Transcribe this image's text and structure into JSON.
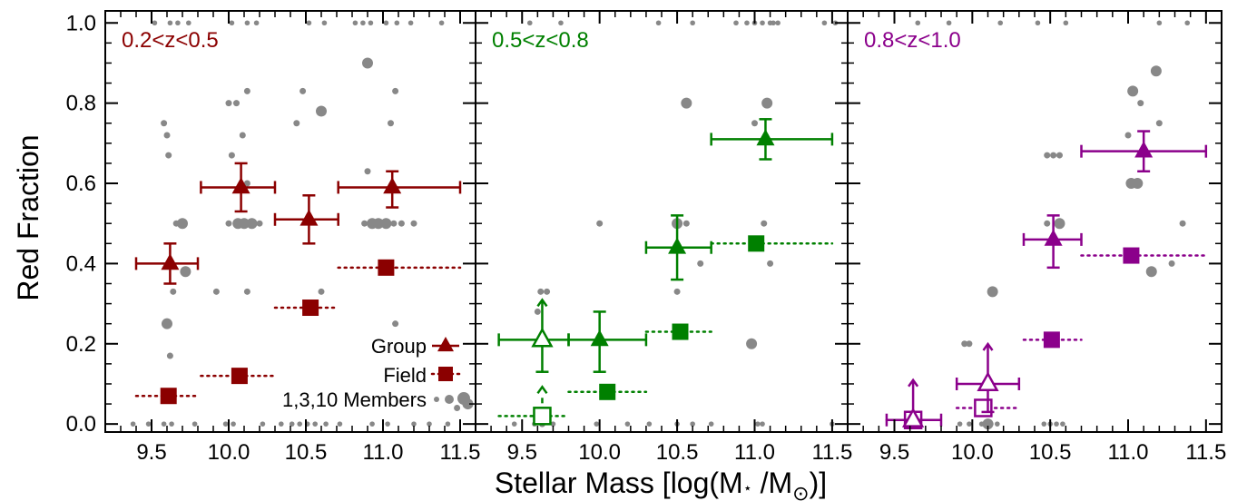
{
  "figure": {
    "xlabel_main": "Stellar Mass [log(M",
    "xlabel_star": "⋆",
    "xlabel_mid": " /M",
    "xlabel_sun": "⊙",
    "xlabel_end": ")]",
    "ylabel": "Red Fraction",
    "legend": {
      "group": "Group",
      "field": "Field",
      "members": "1,3,10 Members"
    }
  },
  "colors": {
    "panel1": "#8b0000",
    "panel2": "#008000",
    "panel3": "#8b008b",
    "members": "#888888"
  },
  "chart_data": [
    {
      "type": "scatter",
      "title": "0.2<z<0.5",
      "xlim": [
        9.2,
        11.6
      ],
      "ylim": [
        -0.02,
        1.03
      ],
      "x_ticks": [
        "9.5",
        "10.0",
        "10.5",
        "11.0",
        "11.5"
      ],
      "y_ticks": [
        "0.0",
        "0.2",
        "0.4",
        "0.6",
        "0.8",
        "1.0"
      ],
      "group": [
        {
          "x": 9.62,
          "y": 0.4,
          "xerr": [
            9.4,
            9.8
          ],
          "yerr": [
            0.35,
            0.45
          ],
          "lower_limit": false
        },
        {
          "x": 10.08,
          "y": 0.59,
          "xerr": [
            9.82,
            10.3
          ],
          "yerr": [
            0.53,
            0.65
          ],
          "lower_limit": false
        },
        {
          "x": 10.52,
          "y": 0.51,
          "xerr": [
            10.3,
            10.71
          ],
          "yerr": [
            0.45,
            0.57
          ],
          "lower_limit": false
        },
        {
          "x": 11.06,
          "y": 0.59,
          "xerr": [
            10.71,
            11.5
          ],
          "yerr": [
            0.54,
            0.63
          ],
          "lower_limit": false
        }
      ],
      "field": [
        {
          "x": 9.61,
          "y": 0.07,
          "xerr": [
            9.4,
            9.8
          ],
          "lower_limit": false
        },
        {
          "x": 10.07,
          "y": 0.12,
          "xerr": [
            9.82,
            10.3
          ],
          "lower_limit": false
        },
        {
          "x": 10.53,
          "y": 0.29,
          "xerr": [
            10.3,
            10.71
          ],
          "lower_limit": false
        },
        {
          "x": 11.02,
          "y": 0.39,
          "xerr": [
            10.71,
            11.5
          ],
          "lower_limit": false
        }
      ],
      "members": [
        {
          "x": 9.6,
          "y": 0.25,
          "n": 3
        },
        {
          "x": 9.62,
          "y": 0.17,
          "n": 1
        },
        {
          "x": 9.58,
          "y": 0.75,
          "n": 1
        },
        {
          "x": 9.6,
          "y": 0.72,
          "n": 1
        },
        {
          "x": 9.61,
          "y": 0.67,
          "n": 1
        },
        {
          "x": 9.66,
          "y": 0.5,
          "n": 1
        },
        {
          "x": 9.7,
          "y": 0.5,
          "n": 3
        },
        {
          "x": 9.64,
          "y": 0.33,
          "n": 1
        },
        {
          "x": 9.72,
          "y": 0.38,
          "n": 3
        },
        {
          "x": 10.0,
          "y": 0.8,
          "n": 1
        },
        {
          "x": 10.05,
          "y": 0.8,
          "n": 1
        },
        {
          "x": 10.09,
          "y": 0.72,
          "n": 1
        },
        {
          "x": 10.12,
          "y": 0.83,
          "n": 1
        },
        {
          "x": 10.0,
          "y": 0.5,
          "n": 1
        },
        {
          "x": 10.06,
          "y": 0.5,
          "n": 3
        },
        {
          "x": 10.1,
          "y": 0.5,
          "n": 3
        },
        {
          "x": 10.15,
          "y": 0.5,
          "n": 3
        },
        {
          "x": 10.2,
          "y": 0.5,
          "n": 1
        },
        {
          "x": 10.02,
          "y": 0.67,
          "n": 1
        },
        {
          "x": 10.12,
          "y": 0.6,
          "n": 1
        },
        {
          "x": 9.92,
          "y": 0.33,
          "n": 1
        },
        {
          "x": 10.12,
          "y": 0.33,
          "n": 1
        },
        {
          "x": 10.44,
          "y": 0.75,
          "n": 1
        },
        {
          "x": 10.48,
          "y": 0.83,
          "n": 1
        },
        {
          "x": 10.6,
          "y": 0.78,
          "n": 3
        },
        {
          "x": 10.6,
          "y": 0.33,
          "n": 1
        },
        {
          "x": 10.88,
          "y": 0.5,
          "n": 1
        },
        {
          "x": 10.93,
          "y": 0.5,
          "n": 3
        },
        {
          "x": 10.97,
          "y": 0.5,
          "n": 3
        },
        {
          "x": 11.02,
          "y": 0.5,
          "n": 3
        },
        {
          "x": 11.07,
          "y": 0.5,
          "n": 1
        },
        {
          "x": 11.12,
          "y": 0.5,
          "n": 1
        },
        {
          "x": 11.2,
          "y": 0.5,
          "n": 1
        },
        {
          "x": 10.9,
          "y": 0.9,
          "n": 3
        },
        {
          "x": 11.08,
          "y": 0.83,
          "n": 1
        },
        {
          "x": 11.05,
          "y": 0.75,
          "n": 1
        },
        {
          "x": 10.9,
          "y": 0.63,
          "n": 1
        },
        {
          "x": 11.08,
          "y": 0.25,
          "n": 1
        },
        {
          "x": 11.55,
          "y": 0.05,
          "n": 3
        },
        {
          "x": 11.48,
          "y": 0.04,
          "n": 1
        }
      ],
      "members_edges": {
        "bottom": [
          9.38,
          9.48,
          9.58,
          9.63,
          9.78,
          9.98,
          10.03,
          10.22,
          10.34,
          10.41,
          10.46,
          10.51,
          10.56,
          10.63,
          10.72,
          10.93,
          11.03,
          11.2,
          11.3,
          11.42
        ],
        "top": [
          9.52,
          9.62,
          9.67,
          9.74,
          10.02,
          10.12,
          10.18,
          10.52,
          10.62,
          10.82,
          10.87,
          10.92,
          11.02,
          11.09,
          11.18,
          11.38
        ]
      }
    },
    {
      "type": "scatter",
      "title": "0.5<z<0.8",
      "xlim": [
        9.2,
        11.6
      ],
      "ylim": [
        -0.02,
        1.03
      ],
      "x_ticks": [
        "9.5",
        "10.0",
        "10.5",
        "11.0",
        "11.5"
      ],
      "y_ticks": [
        "0.0",
        "0.2",
        "0.4",
        "0.6",
        "0.8",
        "1.0"
      ],
      "group": [
        {
          "x": 9.63,
          "y": 0.21,
          "xerr": [
            9.35,
            9.8
          ],
          "yerr": [
            0.13,
            0.29
          ],
          "lower_limit": true
        },
        {
          "x": 10.0,
          "y": 0.21,
          "xerr": [
            9.8,
            10.3
          ],
          "yerr": [
            0.13,
            0.28
          ],
          "lower_limit": false
        },
        {
          "x": 10.5,
          "y": 0.44,
          "xerr": [
            10.3,
            10.72
          ],
          "yerr": [
            0.36,
            0.52
          ],
          "lower_limit": false
        },
        {
          "x": 11.07,
          "y": 0.71,
          "xerr": [
            10.72,
            11.5
          ],
          "yerr": [
            0.66,
            0.76
          ],
          "lower_limit": false
        }
      ],
      "field": [
        {
          "x": 9.63,
          "y": 0.02,
          "xerr": [
            9.35,
            9.8
          ],
          "lower_limit": true
        },
        {
          "x": 10.05,
          "y": 0.08,
          "xerr": [
            9.8,
            10.3
          ],
          "lower_limit": false
        },
        {
          "x": 10.52,
          "y": 0.23,
          "xerr": [
            10.3,
            10.72
          ],
          "lower_limit": false
        },
        {
          "x": 11.01,
          "y": 0.45,
          "xerr": [
            10.72,
            11.5
          ],
          "lower_limit": false
        }
      ],
      "members": [
        {
          "x": 9.62,
          "y": 0.33,
          "n": 1
        },
        {
          "x": 9.66,
          "y": 0.33,
          "n": 1
        },
        {
          "x": 9.6,
          "y": 0.28,
          "n": 1
        },
        {
          "x": 9.63,
          "y": 0.0,
          "n": 1
        },
        {
          "x": 10.0,
          "y": 0.5,
          "n": 1
        },
        {
          "x": 10.5,
          "y": 0.5,
          "n": 3
        },
        {
          "x": 10.56,
          "y": 0.5,
          "n": 1
        },
        {
          "x": 10.56,
          "y": 0.8,
          "n": 3
        },
        {
          "x": 11.0,
          "y": 0.75,
          "n": 1
        },
        {
          "x": 11.08,
          "y": 0.8,
          "n": 3
        },
        {
          "x": 10.98,
          "y": 0.2,
          "n": 3
        },
        {
          "x": 11.06,
          "y": 0.5,
          "n": 1
        },
        {
          "x": 11.1,
          "y": 0.4,
          "n": 1
        },
        {
          "x": 10.5,
          "y": 0.33,
          "n": 1
        },
        {
          "x": 10.65,
          "y": 0.4,
          "n": 1
        }
      ],
      "members_edges": {
        "bottom": [
          9.45,
          9.58,
          9.7,
          9.98,
          10.18,
          10.32,
          10.5,
          10.6,
          10.72,
          11.02,
          11.05,
          11.5
        ],
        "top": [
          9.55,
          9.75,
          10.38,
          10.6,
          10.88,
          10.95,
          11.0,
          11.05,
          11.1,
          11.12,
          11.15,
          11.45,
          11.52
        ]
      }
    },
    {
      "type": "scatter",
      "title": "0.8<z<1.0",
      "xlim": [
        9.2,
        11.6
      ],
      "ylim": [
        -0.02,
        1.03
      ],
      "x_ticks": [
        "9.5",
        "10.0",
        "10.5",
        "11.0",
        "11.5"
      ],
      "y_ticks": [
        "0.0",
        "0.2",
        "0.4",
        "0.6",
        "0.8",
        "1.0"
      ],
      "group": [
        {
          "x": 9.62,
          "y": 0.01,
          "xerr": [
            9.45,
            9.8
          ],
          "yerr": [
            0.0,
            0.06
          ],
          "lower_limit": true
        },
        {
          "x": 10.1,
          "y": 0.1,
          "xerr": [
            9.9,
            10.3
          ],
          "yerr": [
            0.03,
            0.17
          ],
          "lower_limit": true
        },
        {
          "x": 10.52,
          "y": 0.46,
          "xerr": [
            10.33,
            10.7
          ],
          "yerr": [
            0.39,
            0.52
          ],
          "lower_limit": false
        },
        {
          "x": 11.1,
          "y": 0.68,
          "xerr": [
            10.7,
            11.5
          ],
          "yerr": [
            0.63,
            0.73
          ],
          "lower_limit": false
        }
      ],
      "field": [
        {
          "x": 9.62,
          "y": 0.01,
          "xerr": [
            9.45,
            9.8
          ],
          "lower_limit": true
        },
        {
          "x": 10.07,
          "y": 0.04,
          "xerr": [
            9.9,
            10.3
          ],
          "lower_limit": true
        },
        {
          "x": 10.51,
          "y": 0.21,
          "xerr": [
            10.33,
            10.7
          ],
          "lower_limit": false
        },
        {
          "x": 11.02,
          "y": 0.42,
          "xerr": [
            10.7,
            11.5
          ],
          "lower_limit": false
        }
      ],
      "members": [
        {
          "x": 9.95,
          "y": 0.2,
          "n": 1
        },
        {
          "x": 9.98,
          "y": 0.2,
          "n": 1
        },
        {
          "x": 10.13,
          "y": 0.33,
          "n": 3
        },
        {
          "x": 10.48,
          "y": 0.67,
          "n": 1
        },
        {
          "x": 10.52,
          "y": 0.67,
          "n": 1
        },
        {
          "x": 10.56,
          "y": 0.67,
          "n": 1
        },
        {
          "x": 10.48,
          "y": 0.5,
          "n": 1
        },
        {
          "x": 10.56,
          "y": 0.5,
          "n": 3
        },
        {
          "x": 11.03,
          "y": 0.83,
          "n": 3
        },
        {
          "x": 11.08,
          "y": 0.8,
          "n": 1
        },
        {
          "x": 11.02,
          "y": 0.6,
          "n": 3
        },
        {
          "x": 11.06,
          "y": 0.6,
          "n": 3
        },
        {
          "x": 11.18,
          "y": 0.88,
          "n": 3
        },
        {
          "x": 11.2,
          "y": 0.75,
          "n": 1
        },
        {
          "x": 11.15,
          "y": 0.38,
          "n": 3
        },
        {
          "x": 11.28,
          "y": 0.4,
          "n": 1
        },
        {
          "x": 11.35,
          "y": 0.5,
          "n": 1
        },
        {
          "x": 11.0,
          "y": 0.72,
          "n": 1
        },
        {
          "x": 10.1,
          "y": 0.0,
          "n": 3
        }
      ],
      "members_edges": {
        "bottom": [
          9.6,
          9.66,
          9.92,
          9.98,
          10.06,
          10.12,
          10.16,
          10.46,
          10.5,
          10.54,
          10.58
        ],
        "top": [
          9.65,
          9.85,
          10.18,
          10.42,
          10.6,
          11.2,
          11.38
        ]
      }
    }
  ]
}
